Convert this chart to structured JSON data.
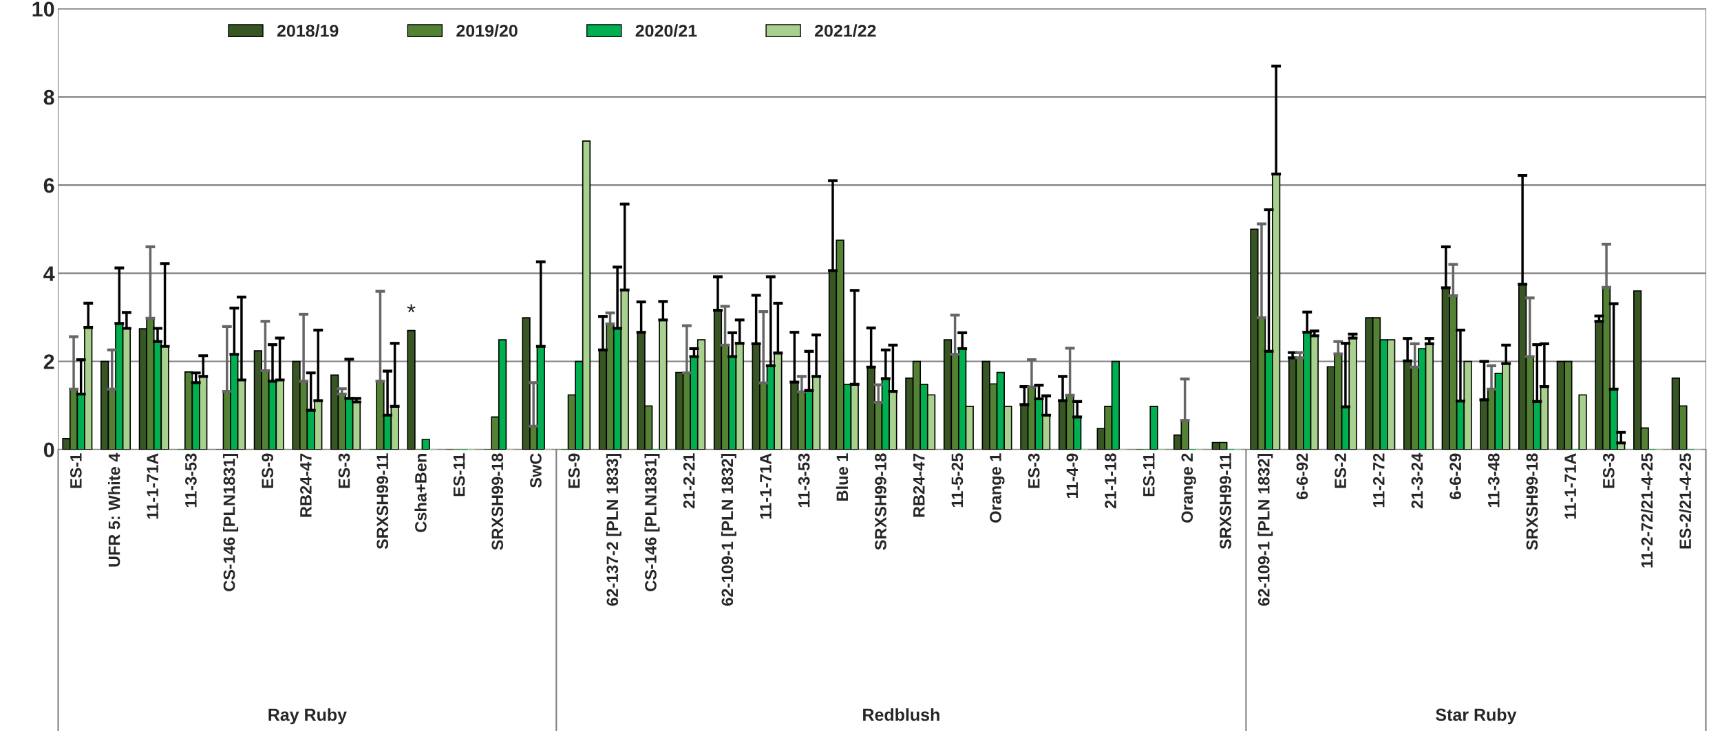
{
  "chart_data": {
    "type": "bar",
    "categories": [
      "ES-1",
      "UFR 5: White 4",
      "11-1-71A",
      "11-3-53",
      "CS-146 [PLN1831]",
      "ES-9",
      "RB24-47",
      "ES-3",
      "SRXSH99-11",
      "Csha+Ben",
      "ES-11",
      "SRXSH99-18",
      "SwC",
      "ES-9",
      "62-137-2 [PLN 1833]",
      "CS-146 [PLN1831]",
      "21-2-21",
      "62-109-1 [PLN 1832]",
      "11-1-71A",
      "11-3-53",
      "Blue 1",
      "SRXSH99-18",
      "RB24-47",
      "11-5-25",
      "Orange 1",
      "ES-3",
      "11-4-9",
      "21-1-18",
      "ES-11",
      "Orange 2",
      "SRXSH99-11",
      "62-109-1 [PLN 1832]",
      "6-6-92",
      "ES-2",
      "11-2-72",
      "21-3-24",
      "6-6-29",
      "11-3-48",
      "SRXSH99-18",
      "11-1-71A",
      "ES-3",
      "11-2-72/21-4-25",
      "ES-2/21-4-25"
    ],
    "series": [
      {
        "name": "2018/19",
        "color": "#375623",
        "value_labels": [
          null,
          null,
          null,
          null,
          null,
          null,
          null,
          null,
          null,
          "*",
          null,
          null,
          null,
          null,
          null,
          null,
          null,
          null,
          null,
          null,
          null,
          null,
          null,
          null,
          null,
          null,
          null,
          null,
          null,
          null,
          null,
          null,
          null,
          null,
          null,
          null,
          null,
          null,
          null,
          null,
          null,
          null,
          null
        ],
        "values": [
          0.25,
          2.0,
          2.74,
          0,
          0,
          2.24,
          2.0,
          1.69,
          0,
          2.7,
          0,
          0,
          2.99,
          0,
          2.26,
          2.66,
          1.75,
          3.16,
          2.4,
          1.53,
          4.06,
          1.87,
          1.62,
          2.49,
          2.0,
          1.02,
          1.11,
          0.48,
          0,
          0.33,
          0.16,
          5.0,
          2.08,
          1.88,
          2.99,
          2.01,
          3.67,
          1.13,
          3.75,
          2.0,
          2.91,
          3.6,
          1.62
        ],
        "errors": [
          null,
          null,
          null,
          null,
          null,
          null,
          null,
          null,
          null,
          null,
          null,
          null,
          null,
          null,
          [
            2.26,
            3.02
          ],
          [
            2.66,
            3.35
          ],
          null,
          [
            3.16,
            3.92
          ],
          [
            2.4,
            3.5
          ],
          [
            1.53,
            2.66
          ],
          [
            4.06,
            6.1
          ],
          [
            1.87,
            2.76
          ],
          null,
          null,
          null,
          [
            1.02,
            1.43
          ],
          [
            1.11,
            1.66
          ],
          null,
          null,
          null,
          null,
          null,
          [
            2.08,
            2.2
          ],
          null,
          null,
          [
            2.01,
            2.52
          ],
          [
            3.67,
            4.6
          ],
          [
            1.13,
            2.0
          ],
          [
            3.75,
            6.22
          ],
          null,
          [
            2.91,
            3.03
          ],
          null,
          null
        ]
      },
      {
        "name": "2019/20",
        "color": "#548235",
        "values": [
          1.37,
          1.37,
          2.98,
          1.76,
          1.32,
          1.79,
          1.55,
          1.26,
          1.55,
          0,
          0,
          0.74,
          0.53,
          1.24,
          2.85,
          0.99,
          1.74,
          2.37,
          1.51,
          1.31,
          4.75,
          1.07,
          2.0,
          2.16,
          1.49,
          1.42,
          1.23,
          0.98,
          0,
          0.66,
          0.16,
          2.99,
          2.08,
          2.17,
          2.99,
          1.87,
          3.49,
          1.37,
          2.11,
          2.0,
          3.68,
          0.49,
          0.99
        ],
        "errors": [
          [
            1.37,
            2.56
          ],
          [
            1.37,
            2.26
          ],
          [
            2.98,
            4.6
          ],
          null,
          [
            1.32,
            2.79
          ],
          [
            1.79,
            2.91
          ],
          [
            1.55,
            3.07
          ],
          [
            1.26,
            1.38
          ],
          [
            1.55,
            3.59
          ],
          null,
          null,
          null,
          [
            0.53,
            1.52
          ],
          null,
          [
            2.85,
            3.1
          ],
          null,
          [
            1.74,
            2.81
          ],
          [
            2.37,
            3.25
          ],
          [
            1.51,
            3.13
          ],
          [
            1.31,
            1.66
          ],
          null,
          [
            1.07,
            1.47
          ],
          null,
          [
            2.16,
            3.05
          ],
          null,
          [
            1.42,
            2.04
          ],
          [
            1.23,
            2.3
          ],
          null,
          null,
          [
            0.66,
            1.6
          ],
          null,
          [
            2.99,
            5.12
          ],
          [
            2.08,
            2.2
          ],
          [
            2.17,
            2.45
          ],
          null,
          [
            1.87,
            2.4
          ],
          [
            3.49,
            4.2
          ],
          [
            1.37,
            1.9
          ],
          [
            2.11,
            3.44
          ],
          null,
          [
            3.68,
            4.66
          ],
          null,
          null
        ]
      },
      {
        "name": "2020/21",
        "color": "#00b050",
        "values": [
          1.26,
          2.86,
          2.45,
          1.52,
          2.16,
          1.55,
          0.89,
          1.16,
          0.78,
          0.23,
          0,
          2.49,
          2.34,
          2.0,
          2.75,
          0,
          2.11,
          2.11,
          1.9,
          1.34,
          1.48,
          1.61,
          1.48,
          2.29,
          1.75,
          1.15,
          0.74,
          2.0,
          0.98,
          0,
          0,
          2.23,
          2.66,
          0.97,
          2.49,
          2.29,
          1.1,
          1.73,
          1.09,
          0,
          1.37,
          0,
          0
        ],
        "errors": [
          [
            1.26,
            2.04
          ],
          [
            2.86,
            4.12
          ],
          [
            2.45,
            2.75
          ],
          [
            1.52,
            1.74
          ],
          [
            2.16,
            3.21
          ],
          [
            1.55,
            2.38
          ],
          [
            0.89,
            1.74
          ],
          [
            1.16,
            2.05
          ],
          [
            0.78,
            1.78
          ],
          null,
          null,
          null,
          [
            2.34,
            4.26
          ],
          null,
          [
            2.75,
            4.14
          ],
          null,
          [
            2.11,
            2.29
          ],
          [
            2.11,
            2.65
          ],
          [
            1.9,
            3.92
          ],
          [
            1.34,
            2.23
          ],
          null,
          [
            1.61,
            2.26
          ],
          null,
          [
            2.29,
            2.65
          ],
          null,
          [
            1.15,
            1.46
          ],
          [
            0.74,
            1.09
          ],
          null,
          null,
          null,
          null,
          [
            2.23,
            5.44
          ],
          [
            2.66,
            3.12
          ],
          [
            0.97,
            2.41
          ],
          null,
          null,
          [
            1.1,
            2.71
          ],
          null,
          [
            1.09,
            2.38
          ],
          null,
          [
            1.37,
            3.31
          ],
          null,
          null
        ]
      },
      {
        "name": "2021/22",
        "color": "#a9d18e",
        "values": [
          2.77,
          2.75,
          2.34,
          1.66,
          1.58,
          1.58,
          1.11,
          1.08,
          0.98,
          0,
          0,
          0,
          0,
          7.0,
          3.62,
          2.94,
          2.49,
          2.41,
          2.19,
          1.66,
          1.48,
          1.32,
          1.24,
          0.98,
          0.98,
          0.78,
          0,
          0,
          0,
          0,
          0,
          6.25,
          2.58,
          2.53,
          2.49,
          2.4,
          2.0,
          1.95,
          1.43,
          1.24,
          0.15,
          0,
          0
        ],
        "errors": [
          [
            2.77,
            3.32
          ],
          [
            2.75,
            3.11
          ],
          [
            2.34,
            4.22
          ],
          [
            1.66,
            2.13
          ],
          [
            1.58,
            3.46
          ],
          [
            1.58,
            2.53
          ],
          [
            1.11,
            2.71
          ],
          [
            1.08,
            1.16
          ],
          [
            0.98,
            2.41
          ],
          null,
          null,
          null,
          null,
          null,
          [
            3.62,
            5.57
          ],
          [
            2.94,
            3.36
          ],
          null,
          [
            2.41,
            2.94
          ],
          [
            2.19,
            3.32
          ],
          [
            1.66,
            2.6
          ],
          [
            1.48,
            3.61
          ],
          [
            1.32,
            2.37
          ],
          null,
          null,
          null,
          [
            0.78,
            1.22
          ],
          null,
          null,
          null,
          null,
          null,
          [
            6.25,
            8.7
          ],
          [
            2.58,
            2.69
          ],
          [
            2.53,
            2.62
          ],
          null,
          [
            2.4,
            2.52
          ],
          null,
          [
            1.95,
            2.37
          ],
          [
            1.43,
            2.4
          ],
          null,
          [
            0.15,
            0.39
          ],
          null,
          null
        ]
      }
    ],
    "ylim": [
      0,
      10
    ],
    "yticks": [
      0,
      2,
      4,
      6,
      8,
      10
    ],
    "grid": "y",
    "legend": "top",
    "annotations": [
      "Ray Ruby",
      "Redblush",
      "Star Ruby"
    ]
  }
}
